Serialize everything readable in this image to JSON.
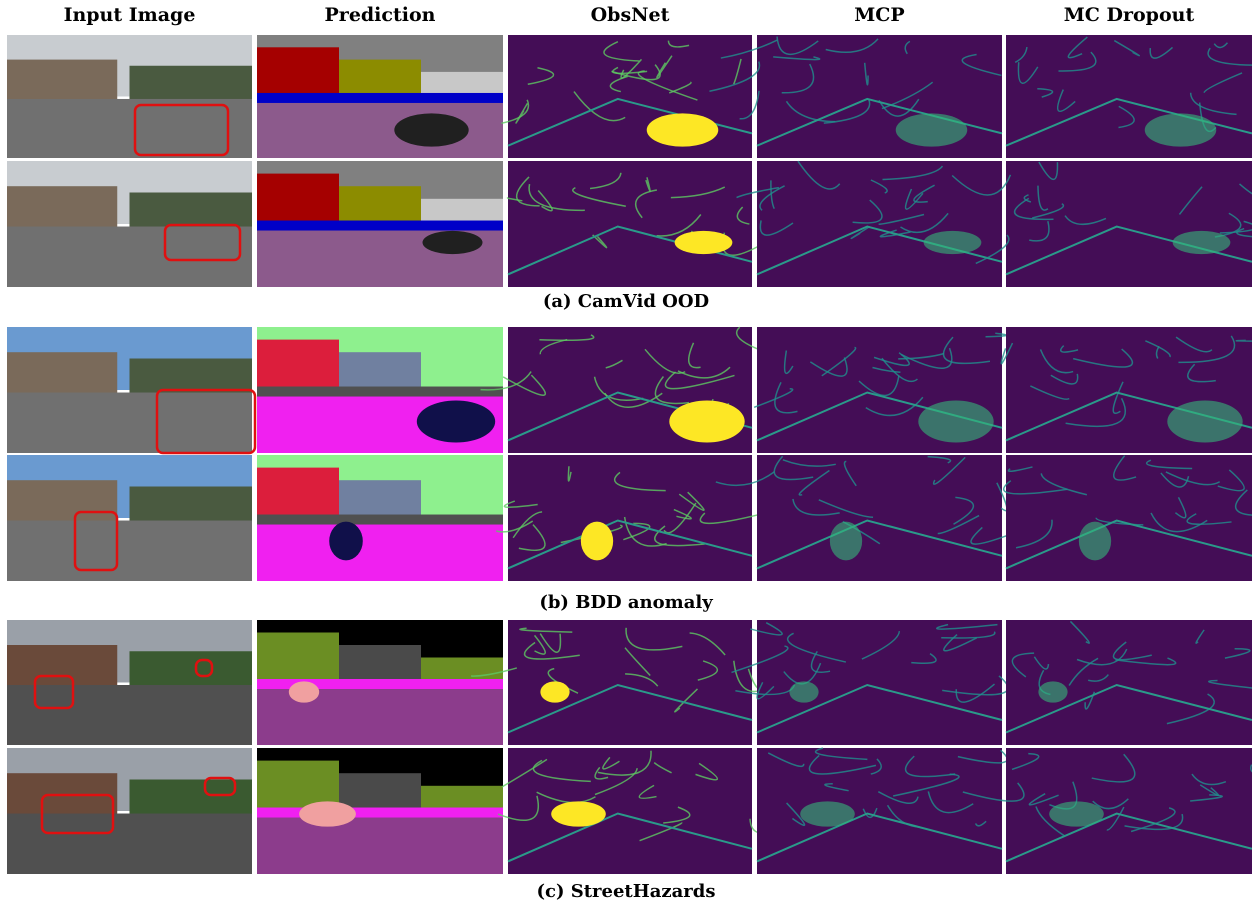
{
  "headers": [
    "Input Image",
    "Prediction",
    "ObsNet",
    "MCP",
    "MC Dropout"
  ],
  "sections": [
    {
      "caption": "(a) CamVid OOD"
    },
    {
      "caption": "(b) BDD anomaly"
    },
    {
      "caption": "(c) StreetHazards"
    }
  ]
}
